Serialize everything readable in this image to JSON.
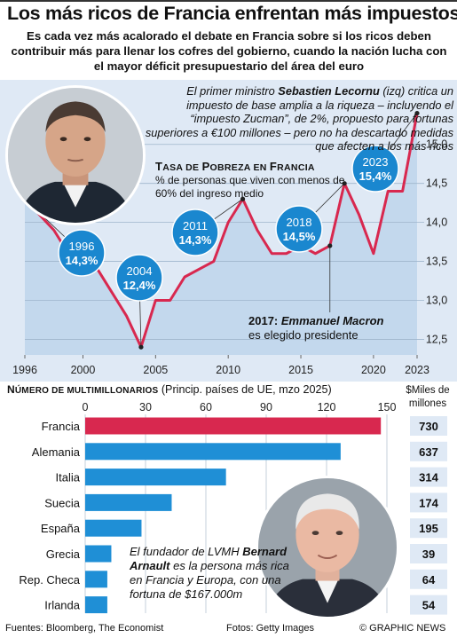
{
  "header": {
    "title": "Los más ricos de Francia enfrentan más impuestos",
    "subtitle": "Es cada vez más acalorado el debate en Francia sobre si los ricos deben contribuir más para llenar los cofres del gobierno, cuando la nación lucha con el mayor déficit presupuestario del área del euro"
  },
  "annotation_pm": {
    "pre": "El primer ministro ",
    "name": "Sebastien Lecornu",
    "post": " (izq) critica un impuesto de base amplia a la riqueza – incluyendo el “impuesto Zucman”, de 2%, propuesto para fortunas superiores a €100 millones – pero no ha descartado medidas que afecten a los más ricos"
  },
  "annotation_macron": {
    "year": "2017:",
    "name": "Emmanuel Macron",
    "text": "es elegido presidente"
  },
  "annotation_arnault": {
    "pre": "El fundador de LVMH ",
    "name": "Bernard Arnault",
    "post": " es la persona más rica en Francia y Europa, con una fortuna de $167.000m"
  },
  "colors": {
    "accent_red": "#d8284f",
    "bar_blue": "#1f8fd6",
    "bubble_blue": "#1a87cf",
    "panel_bg": "#dfe9f5"
  },
  "chart_data": [
    {
      "type": "line",
      "title_a": "T",
      "title_b": "ASA DE ",
      "title_c": "P",
      "title_d": "OBREZA EN ",
      "title_e": "F",
      "title_f": "RANCIA",
      "subtitle": "% de personas que viven con menos de 60% del ingreso medio",
      "x": [
        1996,
        1997,
        1998,
        1999,
        2000,
        2001,
        2002,
        2003,
        2004,
        2005,
        2006,
        2007,
        2008,
        2009,
        2010,
        2011,
        2012,
        2013,
        2014,
        2015,
        2016,
        2017,
        2018,
        2019,
        2020,
        2021,
        2022,
        2023
      ],
      "y": [
        14.3,
        14.1,
        13.9,
        13.6,
        13.4,
        13.4,
        13.1,
        12.8,
        12.4,
        13.0,
        13.0,
        13.3,
        13.4,
        13.5,
        14.0,
        14.3,
        13.9,
        13.6,
        13.6,
        13.7,
        13.6,
        13.7,
        14.5,
        14.1,
        13.6,
        14.4,
        14.4,
        15.4
      ],
      "xticks": [
        "1996",
        "2000",
        "2005",
        "2010",
        "2015",
        "2020",
        "2023"
      ],
      "yticks": [
        "12,5",
        "13,0",
        "13,5",
        "14,0",
        "14,5",
        "15,0"
      ],
      "ylim": [
        12.3,
        15.6
      ],
      "callouts": [
        {
          "year": "1996",
          "value": "14,3%",
          "x": 1996,
          "y": 14.3
        },
        {
          "year": "2004",
          "value": "12,4%",
          "x": 2004,
          "y": 12.4
        },
        {
          "year": "2011",
          "value": "14,3%",
          "x": 2011,
          "y": 14.3
        },
        {
          "year": "2018",
          "value": "14,5%",
          "x": 2018,
          "y": 14.5
        },
        {
          "year": "2023",
          "value": "15,4%",
          "x": 2023,
          "y": 15.4
        }
      ],
      "macron_point": {
        "x": 2017,
        "y": 13.7
      }
    },
    {
      "type": "bar",
      "title_a": "N",
      "title_b": "ÚMERO DE MULTIMILLONARIOS",
      "title_note": " (Princip. países de UE, mzo 2025)",
      "unit": "$Miles de millones",
      "categories": [
        "Francia",
        "Alemania",
        "Italia",
        "Suecia",
        "España",
        "Grecia",
        "Rep. Checa",
        "Irlanda"
      ],
      "values": [
        147,
        127,
        70,
        43,
        28,
        13,
        11,
        11
      ],
      "wealth": [
        "730",
        "637",
        "314",
        "174",
        "195",
        "39",
        "64",
        "54"
      ],
      "xticks": [
        "0",
        "30",
        "60",
        "90",
        "120",
        "150"
      ],
      "xlim": [
        0,
        150
      ]
    }
  ],
  "footer": {
    "sources": "Fuentes: Bloomberg, The Economist",
    "photos": "Fotos: Getty Images",
    "credit": "© GRAPHIC NEWS"
  }
}
